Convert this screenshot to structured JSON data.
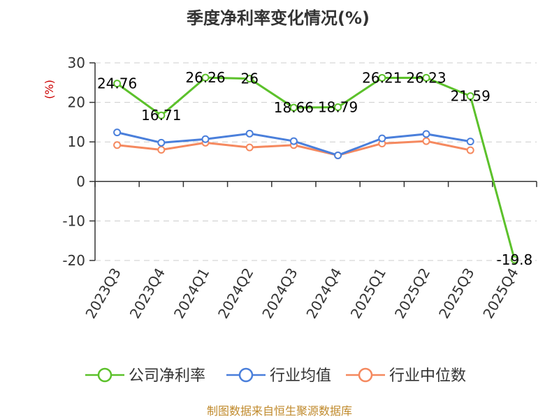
{
  "chart_data": {
    "type": "line",
    "title": "季度净利率变化情况(%)",
    "ylabel": "(%)",
    "xlabel": "",
    "categories": [
      "2023Q3",
      "2023Q4",
      "2024Q1",
      "2024Q2",
      "2024Q3",
      "2024Q4",
      "2025Q1",
      "2025Q2",
      "2025Q3",
      "2025Q4"
    ],
    "ylim": [
      -20,
      30
    ],
    "yticks": [
      30,
      20,
      10,
      0,
      -10,
      -20
    ],
    "grid": true,
    "legend_position": "bottom",
    "series": [
      {
        "name": "公司净利率",
        "color": "#5cc12b",
        "values": [
          24.76,
          16.71,
          26.26,
          26,
          18.66,
          18.79,
          26.21,
          26.23,
          21.59,
          -19.8
        ],
        "labels": [
          "24.76",
          "16.71",
          "26.26",
          "26",
          "18.66",
          "18.79",
          "26.21",
          "26.23",
          "21.59",
          "-19.8"
        ]
      },
      {
        "name": "行业均值",
        "color": "#4a7fdb",
        "values": [
          12.4,
          9.8,
          10.7,
          12.1,
          10.2,
          6.6,
          10.9,
          12.0,
          10.1,
          null
        ]
      },
      {
        "name": "行业中位数",
        "color": "#f5895f",
        "values": [
          9.2,
          8.0,
          9.8,
          8.6,
          9.2,
          6.6,
          9.6,
          10.2,
          7.9,
          null
        ]
      }
    ]
  },
  "source": "制图数据来自恒生聚源数据库"
}
